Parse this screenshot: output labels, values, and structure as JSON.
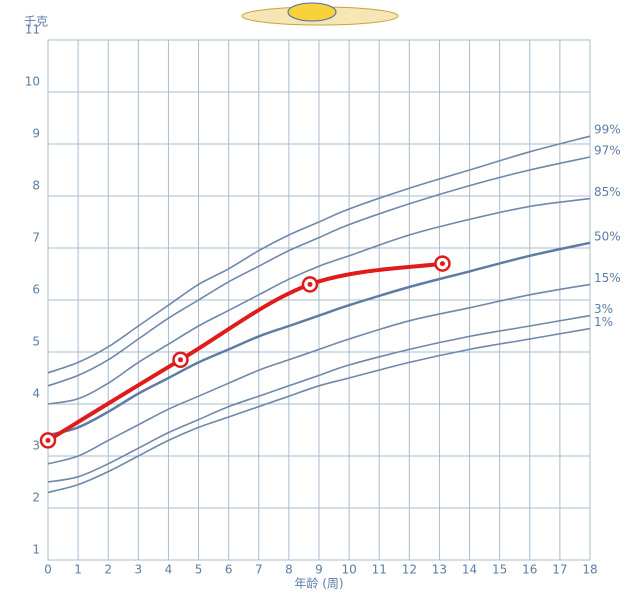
{
  "chart_data": {
    "type": "line",
    "y_label": "千克",
    "x_label": "年龄 (周)",
    "x": [
      0,
      1,
      2,
      3,
      4,
      5,
      6,
      7,
      8,
      9,
      10,
      12,
      14,
      16,
      18
    ],
    "xlim": [
      0,
      18
    ],
    "xticks": [
      0,
      1,
      2,
      3,
      4,
      5,
      6,
      7,
      8,
      9,
      10,
      11,
      12,
      13,
      14,
      15,
      16,
      17,
      18
    ],
    "ylim": [
      1,
      11
    ],
    "yticks": [
      1,
      2,
      3,
      4,
      5,
      6,
      7,
      8,
      9,
      10,
      11
    ],
    "grid": true,
    "series": [
      {
        "name": "99%",
        "color": "#6f88aa",
        "values": [
          4.6,
          4.8,
          5.1,
          5.5,
          5.9,
          6.3,
          6.6,
          6.95,
          7.25,
          7.5,
          7.75,
          8.15,
          8.5,
          8.85,
          9.15
        ]
      },
      {
        "name": "97%",
        "color": "#6f88aa",
        "values": [
          4.35,
          4.55,
          4.85,
          5.25,
          5.65,
          6.0,
          6.35,
          6.65,
          6.95,
          7.2,
          7.45,
          7.85,
          8.2,
          8.5,
          8.75
        ]
      },
      {
        "name": "85%",
        "color": "#6f88aa",
        "values": [
          4.0,
          4.1,
          4.4,
          4.8,
          5.15,
          5.5,
          5.8,
          6.1,
          6.4,
          6.65,
          6.85,
          7.25,
          7.55,
          7.8,
          7.95
        ]
      },
      {
        "name": "50%",
        "color": "#5f7ca3",
        "values": [
          3.4,
          3.55,
          3.85,
          4.2,
          4.5,
          4.8,
          5.05,
          5.3,
          5.5,
          5.7,
          5.9,
          6.25,
          6.55,
          6.85,
          7.1
        ]
      },
      {
        "name": "15%",
        "color": "#6f88aa",
        "values": [
          2.85,
          3.0,
          3.3,
          3.6,
          3.9,
          4.15,
          4.4,
          4.65,
          4.85,
          5.05,
          5.25,
          5.6,
          5.85,
          6.1,
          6.3
        ]
      },
      {
        "name": "3%",
        "color": "#6f88aa",
        "values": [
          2.5,
          2.6,
          2.85,
          3.15,
          3.45,
          3.7,
          3.95,
          4.15,
          4.35,
          4.55,
          4.75,
          5.05,
          5.3,
          5.5,
          5.7
        ]
      },
      {
        "name": "1%",
        "color": "#6f88aa",
        "values": [
          2.3,
          2.45,
          2.7,
          3.0,
          3.3,
          3.55,
          3.75,
          3.95,
          4.15,
          4.35,
          4.5,
          4.8,
          5.05,
          5.25,
          5.45
        ]
      }
    ],
    "measured": {
      "color": "#e01b1b",
      "x": [
        0,
        4.4,
        8.7,
        13.1
      ],
      "values": [
        3.3,
        4.85,
        6.3,
        6.7
      ]
    }
  }
}
